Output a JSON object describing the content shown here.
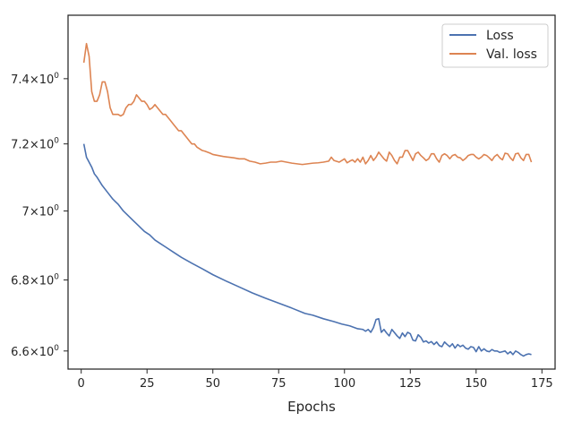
{
  "chart_data": {
    "type": "line",
    "xlabel": "Epochs",
    "ylabel": "",
    "y_scale": "log",
    "xlim": [
      -5,
      180
    ],
    "ylim": [
      6.55,
      7.6
    ],
    "x_ticks": [
      0,
      25,
      50,
      75,
      100,
      125,
      150,
      175
    ],
    "x_tick_labels": [
      "0",
      "25",
      "50",
      "75",
      "100",
      "125",
      "150",
      "175"
    ],
    "y_ticks": [
      6.6,
      6.8,
      7.0,
      7.2,
      7.4
    ],
    "y_tick_mantissas": [
      "6.6",
      "6.8",
      "7",
      "7.2",
      "7.4"
    ],
    "y_tick_suffix": "×10",
    "y_tick_exponent": "0",
    "grid": false,
    "legend_position": "top-right",
    "series": [
      {
        "name": "Loss",
        "color": "#4c72b0",
        "x": [
          1,
          2,
          4,
          5,
          6,
          8,
          10,
          12,
          14,
          16,
          18,
          20,
          22,
          24,
          26,
          28,
          30,
          32,
          35,
          38,
          42,
          46,
          50,
          55,
          60,
          65,
          70,
          75,
          80,
          85,
          88,
          92,
          96,
          99,
          102,
          105,
          107,
          108,
          109,
          110,
          111,
          112,
          113,
          114,
          115,
          116,
          117,
          118,
          120,
          121,
          122,
          123,
          124,
          125,
          126,
          127,
          128,
          129,
          130,
          131,
          132,
          133,
          134,
          135,
          136,
          137,
          138,
          139,
          140,
          141,
          142,
          143,
          144,
          145,
          146,
          147,
          148,
          149,
          150,
          151,
          152,
          153,
          154,
          155,
          156,
          157,
          158,
          159,
          160,
          161,
          162,
          163,
          164,
          165,
          166,
          167,
          168,
          169,
          170,
          171
        ],
        "values": [
          7.2,
          7.16,
          7.13,
          7.11,
          7.1,
          7.075,
          7.055,
          7.035,
          7.02,
          7.0,
          6.985,
          6.97,
          6.955,
          6.94,
          6.93,
          6.915,
          6.905,
          6.895,
          6.88,
          6.865,
          6.848,
          6.832,
          6.815,
          6.797,
          6.78,
          6.763,
          6.748,
          6.734,
          6.72,
          6.705,
          6.7,
          6.69,
          6.682,
          6.675,
          6.67,
          6.662,
          6.66,
          6.655,
          6.66,
          6.652,
          6.665,
          6.688,
          6.69,
          6.652,
          6.66,
          6.65,
          6.642,
          6.66,
          6.642,
          6.635,
          6.65,
          6.64,
          6.652,
          6.648,
          6.63,
          6.628,
          6.645,
          6.638,
          6.625,
          6.628,
          6.622,
          6.626,
          6.618,
          6.625,
          6.615,
          6.612,
          6.625,
          6.618,
          6.612,
          6.62,
          6.608,
          6.618,
          6.612,
          6.616,
          6.608,
          6.605,
          6.612,
          6.61,
          6.598,
          6.612,
          6.6,
          6.606,
          6.6,
          6.598,
          6.604,
          6.6,
          6.6,
          6.596,
          6.598,
          6.6,
          6.592,
          6.598,
          6.59,
          6.6,
          6.596,
          6.59,
          6.586,
          6.59,
          6.592,
          6.59
        ]
      },
      {
        "name": "Val. loss",
        "color": "#dd8452",
        "x": [
          1,
          2,
          3,
          4,
          5,
          6,
          7,
          8,
          9,
          10,
          11,
          12,
          13,
          14,
          15,
          16,
          17,
          18,
          19,
          20,
          21,
          22,
          23,
          24,
          25,
          26,
          27,
          28,
          29,
          30,
          31,
          32,
          33,
          34,
          35,
          36,
          37,
          38,
          39,
          40,
          41,
          42,
          43,
          44,
          45,
          46,
          47,
          48,
          49,
          50,
          52,
          54,
          56,
          58,
          60,
          62,
          64,
          66,
          68,
          70,
          72,
          74,
          76,
          78,
          80,
          82,
          84,
          86,
          88,
          90,
          92,
          94,
          95,
          96,
          98,
          100,
          101,
          102,
          103,
          104,
          105,
          106,
          107,
          108,
          109,
          110,
          111,
          112,
          113,
          114,
          115,
          116,
          117,
          118,
          119,
          120,
          121,
          122,
          123,
          124,
          125,
          126,
          127,
          128,
          129,
          130,
          131,
          132,
          133,
          134,
          135,
          136,
          137,
          138,
          139,
          140,
          141,
          142,
          143,
          144,
          145,
          146,
          147,
          148,
          149,
          150,
          151,
          152,
          153,
          154,
          155,
          156,
          157,
          158,
          159,
          160,
          161,
          162,
          163,
          164,
          165,
          166,
          167,
          168,
          169,
          170,
          171
        ],
        "values": [
          7.45,
          7.51,
          7.47,
          7.36,
          7.33,
          7.33,
          7.35,
          7.39,
          7.39,
          7.36,
          7.31,
          7.29,
          7.29,
          7.29,
          7.285,
          7.29,
          7.31,
          7.32,
          7.32,
          7.33,
          7.35,
          7.34,
          7.33,
          7.33,
          7.32,
          7.305,
          7.31,
          7.32,
          7.31,
          7.3,
          7.29,
          7.29,
          7.28,
          7.27,
          7.26,
          7.25,
          7.24,
          7.24,
          7.23,
          7.22,
          7.21,
          7.2,
          7.2,
          7.19,
          7.185,
          7.18,
          7.178,
          7.175,
          7.172,
          7.168,
          7.165,
          7.162,
          7.16,
          7.158,
          7.155,
          7.155,
          7.148,
          7.145,
          7.14,
          7.142,
          7.145,
          7.145,
          7.148,
          7.145,
          7.142,
          7.14,
          7.138,
          7.14,
          7.142,
          7.143,
          7.145,
          7.148,
          7.16,
          7.15,
          7.145,
          7.155,
          7.143,
          7.148,
          7.152,
          7.145,
          7.155,
          7.145,
          7.16,
          7.14,
          7.15,
          7.165,
          7.15,
          7.16,
          7.175,
          7.165,
          7.155,
          7.148,
          7.175,
          7.165,
          7.15,
          7.14,
          7.16,
          7.16,
          7.18,
          7.18,
          7.165,
          7.15,
          7.17,
          7.175,
          7.165,
          7.158,
          7.15,
          7.155,
          7.17,
          7.17,
          7.155,
          7.145,
          7.165,
          7.17,
          7.165,
          7.155,
          7.165,
          7.168,
          7.16,
          7.158,
          7.15,
          7.156,
          7.165,
          7.168,
          7.168,
          7.16,
          7.155,
          7.16,
          7.168,
          7.165,
          7.158,
          7.15,
          7.162,
          7.168,
          7.158,
          7.152,
          7.172,
          7.17,
          7.158,
          7.15,
          7.17,
          7.172,
          7.158,
          7.15,
          7.168,
          7.168,
          7.145
        ]
      }
    ]
  }
}
